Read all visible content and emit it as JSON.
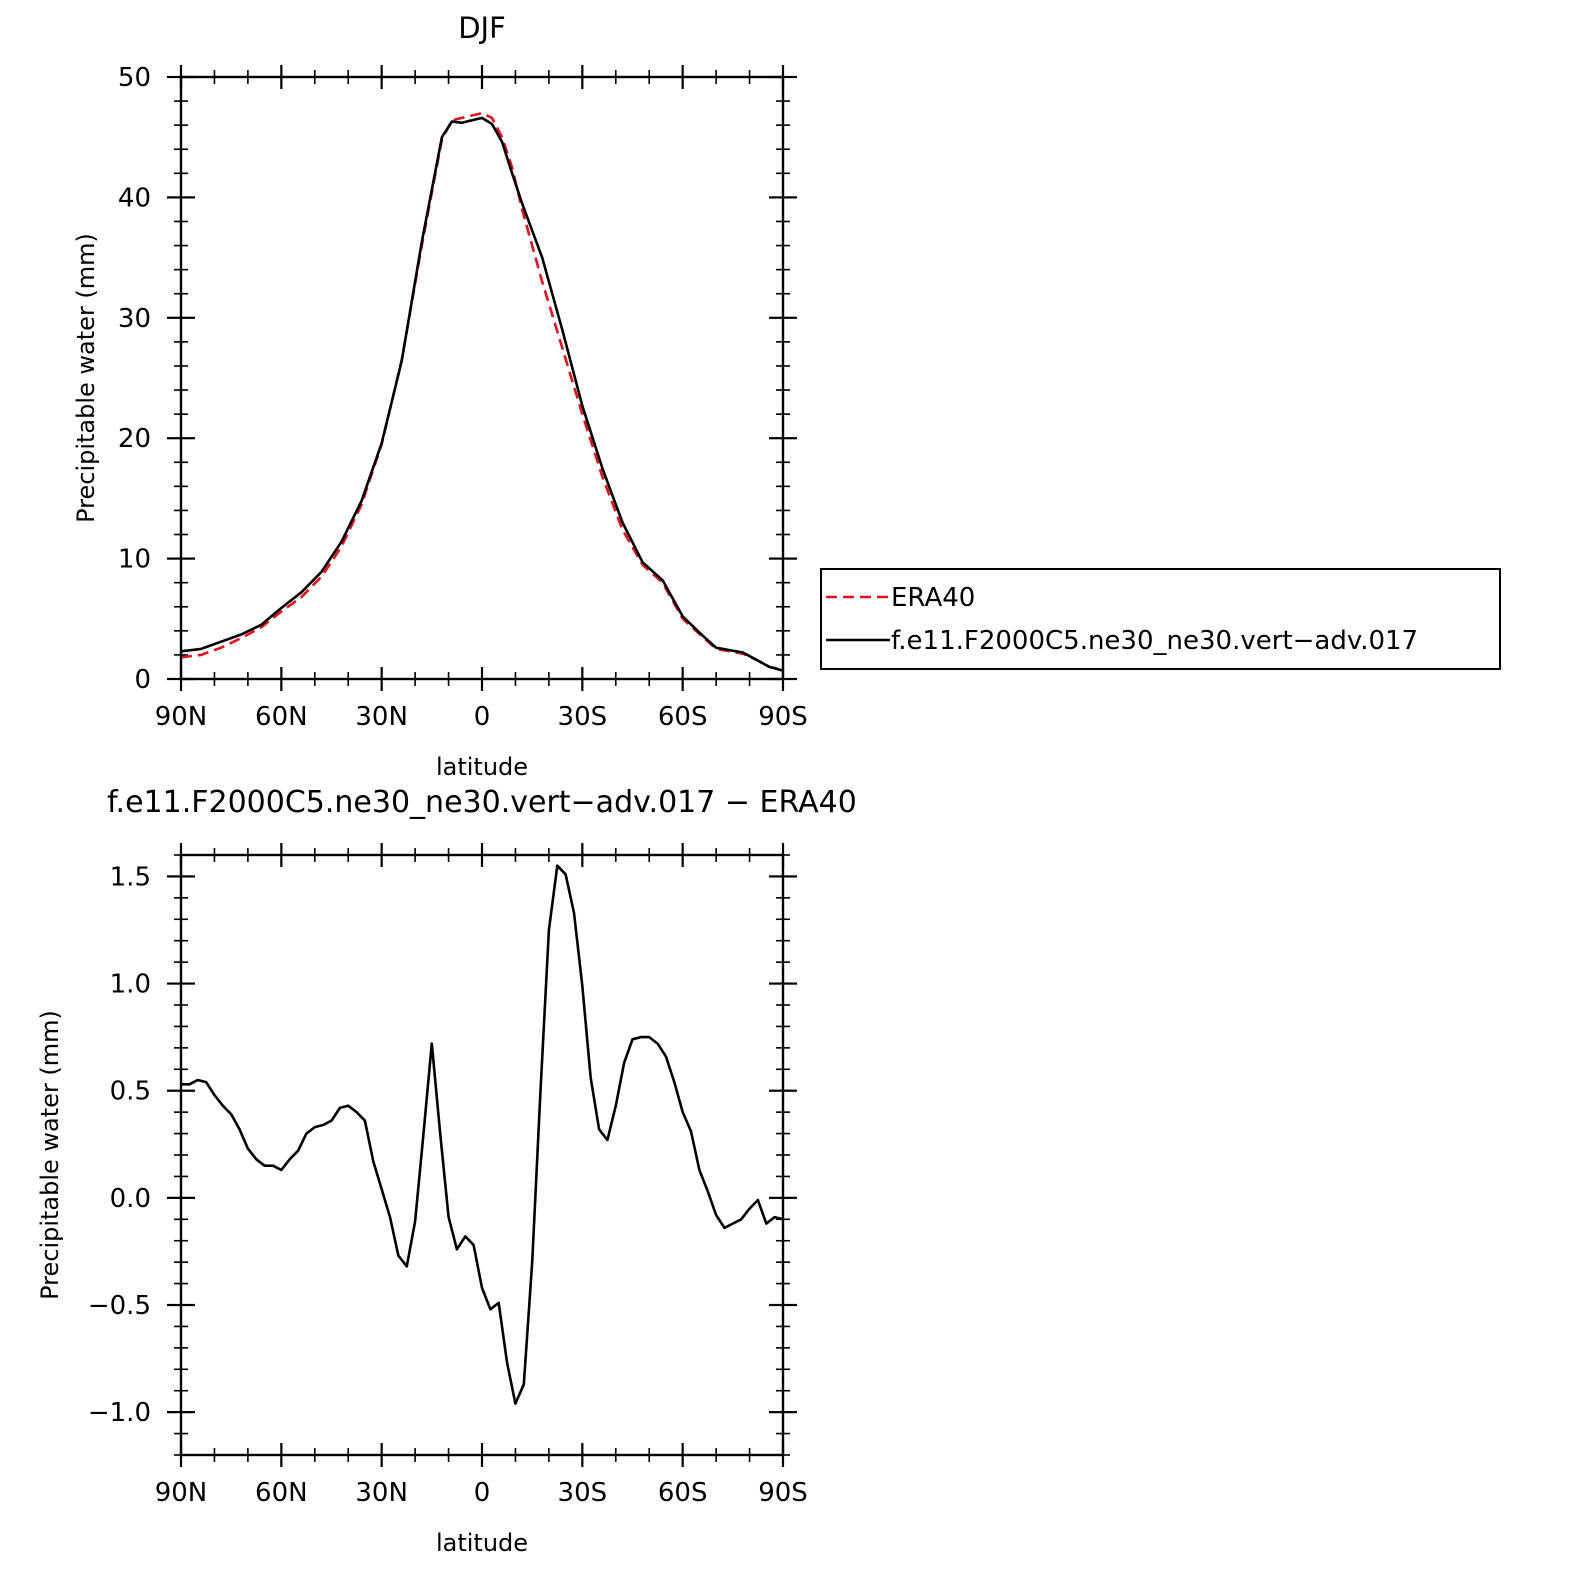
{
  "chart_data": [
    {
      "type": "line",
      "title": "DJF",
      "xlabel": "latitude",
      "ylabel": "Precipitable water (mm)",
      "xlim": [
        90,
        -90
      ],
      "ylim": [
        0,
        50
      ],
      "x_ticks": [
        {
          "value": 90,
          "label": "90N"
        },
        {
          "value": 60,
          "label": "60N"
        },
        {
          "value": 30,
          "label": "30N"
        },
        {
          "value": 0,
          "label": "0"
        },
        {
          "value": -30,
          "label": "30S"
        },
        {
          "value": -60,
          "label": "60S"
        },
        {
          "value": -90,
          "label": "90S"
        }
      ],
      "y_ticks": [
        {
          "value": 0,
          "label": "0"
        },
        {
          "value": 10,
          "label": "10"
        },
        {
          "value": 20,
          "label": "20"
        },
        {
          "value": 30,
          "label": "30"
        },
        {
          "value": 40,
          "label": "40"
        },
        {
          "value": 50,
          "label": "50"
        }
      ],
      "grid": false,
      "legend_position": "right, outside plot",
      "series": [
        {
          "name": "ERA40",
          "color": "#e0141e",
          "dash": "dashed",
          "x": [
            90,
            84,
            78,
            72,
            66,
            60,
            54,
            48,
            42,
            36,
            30,
            24,
            18,
            12,
            9,
            6,
            3,
            0,
            -3,
            -6,
            -9,
            -12,
            -18,
            -24,
            -30,
            -36,
            -42,
            -48,
            -54,
            -60,
            -66,
            -70,
            -74,
            -78,
            -82,
            -86,
            -90
          ],
          "values": [
            1.8,
            2.0,
            2.6,
            3.4,
            4.3,
            5.6,
            6.8,
            8.5,
            11.0,
            14.5,
            19.5,
            26.5,
            36.0,
            44.8,
            46.4,
            46.6,
            46.8,
            47.0,
            46.6,
            45.0,
            42.5,
            39.0,
            33.0,
            27.5,
            22.0,
            16.8,
            12.4,
            9.5,
            8.0,
            5.0,
            3.5,
            2.5,
            2.3,
            2.1,
            1.6,
            1.0,
            0.8
          ]
        },
        {
          "name": "f.e11.F2000C5.ne30_ne30.vert−adv.017",
          "color": "#000000",
          "dash": "solid",
          "x": [
            90,
            84,
            78,
            72,
            66,
            60,
            54,
            48,
            42,
            36,
            30,
            24,
            18,
            12,
            9,
            6,
            3,
            0,
            -3,
            -6,
            -9,
            -12,
            -18,
            -24,
            -30,
            -36,
            -42,
            -48,
            -54,
            -60,
            -66,
            -70,
            -74,
            -78,
            -82,
            -86,
            -90
          ],
          "values": [
            2.3,
            2.5,
            3.1,
            3.7,
            4.5,
            5.9,
            7.2,
            8.9,
            11.4,
            14.8,
            19.6,
            26.4,
            36.3,
            45.0,
            46.3,
            46.2,
            46.4,
            46.6,
            46.1,
            44.6,
            42.0,
            39.5,
            35.0,
            29.0,
            22.7,
            17.5,
            13.0,
            9.7,
            8.2,
            5.2,
            3.6,
            2.6,
            2.4,
            2.2,
            1.6,
            1.0,
            0.7
          ]
        }
      ]
    },
    {
      "type": "line",
      "title": "f.e11.F2000C5.ne30_ne30.vert−adv.017 − ERA40",
      "xlabel": "latitude",
      "ylabel": "Precipitable water (mm)",
      "xlim": [
        90,
        -90
      ],
      "ylim": [
        -1.2,
        1.6
      ],
      "x_ticks": [
        {
          "value": 90,
          "label": "90N"
        },
        {
          "value": 60,
          "label": "60N"
        },
        {
          "value": 30,
          "label": "30N"
        },
        {
          "value": 0,
          "label": "0"
        },
        {
          "value": -30,
          "label": "30S"
        },
        {
          "value": -60,
          "label": "60S"
        },
        {
          "value": -90,
          "label": "90S"
        }
      ],
      "y_ticks": [
        {
          "value": -1.0,
          "label": "−1.0"
        },
        {
          "value": -0.5,
          "label": "−0.5"
        },
        {
          "value": 0.0,
          "label": "0.0"
        },
        {
          "value": 0.5,
          "label": "0.5"
        },
        {
          "value": 1.0,
          "label": "1.0"
        },
        {
          "value": 1.5,
          "label": "1.5"
        }
      ],
      "grid": false,
      "series": [
        {
          "color": "#000000",
          "dash": "solid",
          "x": [
            90,
            87.5,
            85,
            82.5,
            80,
            77.5,
            75,
            72.5,
            70,
            67.5,
            65,
            62.5,
            60,
            57.5,
            55,
            52.5,
            50,
            47.5,
            45,
            42.5,
            40,
            37.5,
            35,
            32.5,
            30,
            27.5,
            25,
            22.5,
            20,
            17.5,
            15,
            12.5,
            10,
            7.5,
            5,
            2.5,
            0,
            -2.5,
            -5,
            -7.5,
            -10,
            -12.5,
            -15,
            -17.5,
            -20,
            -22.5,
            -25,
            -27.5,
            -30,
            -32.5,
            -35,
            -37.5,
            -40,
            -42.5,
            -45,
            -47.5,
            -50,
            -52.5,
            -55,
            -57.5,
            -60,
            -62.5,
            -65,
            -67.5,
            -70,
            -72.5,
            -75,
            -77.5,
            -80,
            -82.5,
            -85,
            -87.5,
            -90
          ],
          "values": [
            0.53,
            0.53,
            0.55,
            0.54,
            0.48,
            0.43,
            0.39,
            0.32,
            0.23,
            0.18,
            0.15,
            0.15,
            0.13,
            0.18,
            0.22,
            0.3,
            0.33,
            0.34,
            0.36,
            0.42,
            0.43,
            0.4,
            0.36,
            0.17,
            0.04,
            -0.09,
            -0.27,
            -0.32,
            -0.11,
            0.3,
            0.72,
            0.3,
            -0.09,
            -0.24,
            -0.18,
            -0.22,
            -0.42,
            -0.52,
            -0.49,
            -0.77,
            -0.96,
            -0.87,
            -0.3,
            0.5,
            1.25,
            1.55,
            1.51,
            1.33,
            0.99,
            0.56,
            0.32,
            0.27,
            0.43,
            0.63,
            0.74,
            0.75,
            0.75,
            0.72,
            0.66,
            0.54,
            0.4,
            0.31,
            0.13,
            0.03,
            -0.08,
            -0.14,
            -0.12,
            -0.1,
            -0.05,
            -0.01,
            -0.12,
            -0.09,
            -0.1
          ]
        }
      ]
    }
  ]
}
